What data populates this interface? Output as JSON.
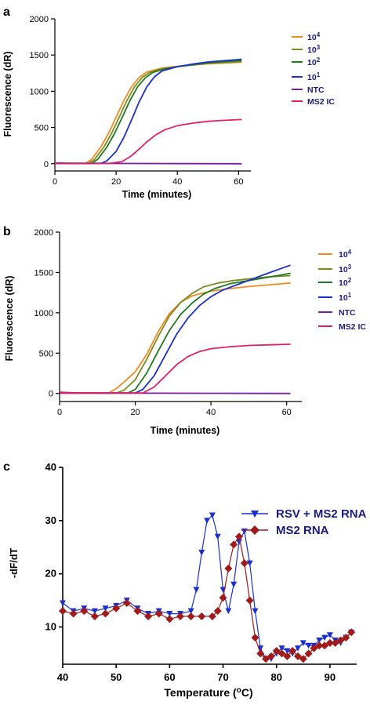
{
  "chart_data": [
    {
      "panel": "a",
      "type": "line",
      "xlabel": "Time (minutes)",
      "ylabel": "Fluorescence (dR)",
      "xlim": [
        0,
        64
      ],
      "ylim": [
        -100,
        2000
      ],
      "xticks": [
        "0",
        "20",
        "40",
        "60"
      ],
      "yticks": [
        "0",
        "500",
        "1000",
        "1500",
        "2000"
      ],
      "legend_position": "right",
      "series": [
        {
          "name_base": "10",
          "name_exp": "4",
          "color": "#f28a1e",
          "x": [
            0,
            10,
            12,
            15,
            17.5,
            20,
            22.5,
            25,
            27.5,
            30,
            35,
            40,
            50,
            61
          ],
          "y": [
            5,
            5,
            60,
            230,
            420,
            640,
            870,
            1060,
            1190,
            1265,
            1320,
            1345,
            1380,
            1400
          ]
        },
        {
          "name_base": "10",
          "name_exp": "3",
          "color": "#7e8b1e",
          "x": [
            0,
            11,
            13,
            16,
            18.5,
            21,
            23.5,
            26,
            28.5,
            31,
            35,
            40,
            50,
            61
          ],
          "y": [
            5,
            5,
            60,
            230,
            420,
            640,
            870,
            1060,
            1190,
            1260,
            1310,
            1340,
            1385,
            1410
          ]
        },
        {
          "name_base": "10",
          "name_exp": "2",
          "color": "#1f7a1f",
          "x": [
            0,
            12,
            14,
            17,
            19.5,
            22,
            24.5,
            27,
            29.5,
            32,
            36,
            40,
            50,
            61
          ],
          "y": [
            5,
            5,
            60,
            230,
            420,
            640,
            870,
            1060,
            1185,
            1260,
            1310,
            1340,
            1395,
            1425
          ]
        },
        {
          "name_base": "10",
          "name_exp": "1",
          "color": "#1a2fd0",
          "x": [
            0,
            15,
            17,
            20,
            22.5,
            25,
            27.5,
            30,
            32.5,
            35,
            40,
            45,
            50,
            61
          ],
          "y": [
            5,
            5,
            40,
            170,
            360,
            600,
            850,
            1060,
            1200,
            1280,
            1340,
            1375,
            1405,
            1440
          ]
        },
        {
          "name": "NTC",
          "color": "#7a1f9e",
          "x": [
            0,
            5,
            61
          ],
          "y": [
            12,
            5,
            0
          ]
        },
        {
          "name": "MS2 IC",
          "color": "#e0206c",
          "x": [
            0,
            18,
            22,
            25,
            28,
            30,
            33,
            36,
            40,
            45,
            50,
            55,
            61
          ],
          "y": [
            5,
            5,
            30,
            110,
            220,
            300,
            400,
            470,
            525,
            560,
            585,
            598,
            610
          ]
        }
      ]
    },
    {
      "panel": "b",
      "type": "line",
      "xlabel": "Time (minutes)",
      "ylabel": "Fluorescence (dR)",
      "xlim": [
        0,
        64
      ],
      "ylim": [
        -100,
        2000
      ],
      "xticks": [
        "0",
        "20",
        "40",
        "60"
      ],
      "yticks": [
        "0",
        "500",
        "1000",
        "1500",
        "2000"
      ],
      "legend_position": "right",
      "series": [
        {
          "name_base": "10",
          "name_exp": "4",
          "color": "#f28a1e",
          "x": [
            0,
            13,
            15,
            17,
            20,
            23,
            26,
            29,
            32,
            35,
            40,
            45,
            50,
            55,
            61
          ],
          "y": [
            5,
            5,
            60,
            140,
            270,
            480,
            760,
            990,
            1130,
            1210,
            1270,
            1300,
            1325,
            1345,
            1370
          ]
        },
        {
          "name_base": "10",
          "name_exp": "3",
          "color": "#7e8b1e",
          "x": [
            0,
            15,
            17,
            20,
            23,
            26,
            29,
            32,
            35,
            38,
            42,
            46,
            50,
            55,
            61
          ],
          "y": [
            5,
            5,
            40,
            170,
            420,
            700,
            960,
            1130,
            1240,
            1320,
            1370,
            1400,
            1420,
            1445,
            1460
          ]
        },
        {
          "name_base": "10",
          "name_exp": "2",
          "color": "#1f7a1f",
          "x": [
            0,
            18,
            20,
            23,
            26,
            29,
            32,
            35,
            38,
            41,
            45,
            50,
            55,
            61
          ],
          "y": [
            5,
            5,
            50,
            250,
            520,
            780,
            980,
            1120,
            1230,
            1300,
            1360,
            1400,
            1440,
            1490
          ]
        },
        {
          "name_base": "10",
          "name_exp": "1",
          "color": "#1a2fd0",
          "x": [
            0,
            20,
            22,
            25,
            28,
            31,
            34,
            37,
            40,
            43,
            47,
            51,
            55,
            58,
            61
          ],
          "y": [
            5,
            5,
            50,
            220,
            480,
            740,
            940,
            1090,
            1200,
            1280,
            1350,
            1420,
            1490,
            1540,
            1590
          ]
        },
        {
          "name": "NTC",
          "color": "#7a1f9e",
          "x": [
            0,
            5,
            61
          ],
          "y": [
            15,
            5,
            0
          ]
        },
        {
          "name": "MS2 IC",
          "color": "#e0206c",
          "x": [
            0,
            22,
            25,
            28,
            31,
            34,
            37,
            40,
            45,
            50,
            55,
            61
          ],
          "y": [
            5,
            5,
            80,
            220,
            360,
            460,
            520,
            555,
            580,
            595,
            602,
            610
          ]
        }
      ]
    },
    {
      "panel": "c",
      "type": "line",
      "xlabel": "Temperature (",
      "xlabel_sup": "o",
      "xlabel_end": "C)",
      "ylabel": "-dF/dT",
      "xlim": [
        40,
        95
      ],
      "ylim": [
        3,
        40
      ],
      "xticks": [
        "40",
        "50",
        "60",
        "70",
        "80",
        "90"
      ],
      "yticks": [
        "10",
        "20",
        "30",
        "40"
      ],
      "legend_position": "top-right",
      "series": [
        {
          "name": "RSV + MS2 RNA",
          "color": "#1a2fd0",
          "marker": "triangle-down",
          "x": [
            40,
            42,
            44,
            46,
            48,
            50,
            52,
            54,
            56,
            58,
            60,
            62,
            64,
            65,
            66,
            67,
            68,
            69,
            70,
            71,
            72,
            73,
            74,
            75,
            76,
            77,
            78,
            79,
            80,
            81,
            82,
            83,
            84,
            85,
            86,
            87,
            88,
            89,
            90,
            91,
            92,
            93,
            94
          ],
          "y": [
            14.5,
            13,
            13.5,
            13,
            13.5,
            14,
            15,
            13.5,
            12.5,
            13,
            12.5,
            12.5,
            13,
            17,
            24,
            30,
            31,
            27,
            17,
            13,
            18,
            26,
            28,
            22,
            13,
            6,
            4,
            4,
            5,
            6,
            5.5,
            5,
            6,
            7,
            6.5,
            6.5,
            7.5,
            8,
            8.5,
            7.5,
            7,
            8,
            9
          ]
        },
        {
          "name": "MS2 RNA",
          "color": "#a01a1a",
          "marker": "diamond",
          "x": [
            40,
            42,
            44,
            46,
            48,
            50,
            52,
            54,
            56,
            58,
            60,
            62,
            64,
            66,
            68,
            69,
            70,
            71,
            72,
            73,
            74,
            75,
            76,
            77,
            78,
            79,
            80,
            81,
            82,
            83,
            84,
            85,
            86,
            87,
            88,
            89,
            90,
            91,
            92,
            93,
            94
          ],
          "y": [
            13,
            12.5,
            13,
            12,
            12.5,
            13.5,
            14.5,
            13,
            12,
            12.5,
            11.5,
            12,
            12,
            12,
            12,
            13,
            15.5,
            21,
            25.5,
            27,
            22,
            15,
            8,
            5,
            4,
            4.5,
            5.5,
            5,
            4.5,
            5.5,
            4.5,
            4,
            5,
            6,
            6.5,
            6.5,
            7,
            7,
            7.5,
            8,
            9
          ]
        }
      ]
    }
  ]
}
